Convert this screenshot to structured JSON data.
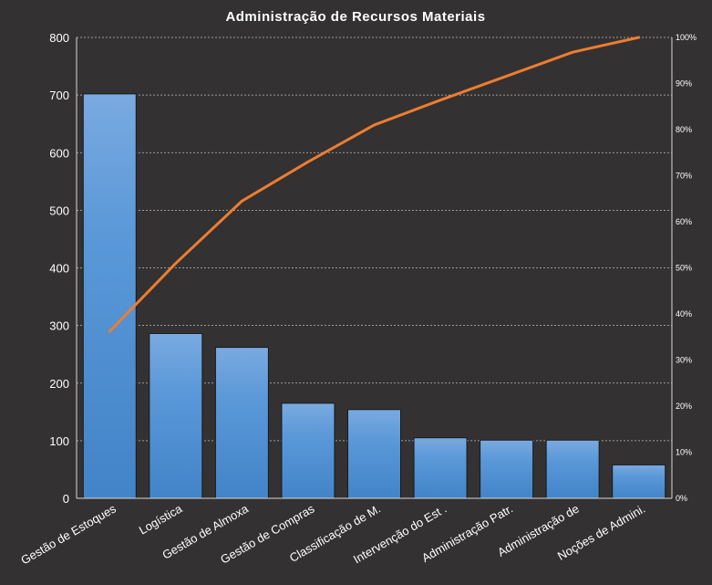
{
  "chart_data": {
    "type": "bar",
    "title": "Administração  de Recursos  Materiais",
    "categories": [
      "Gestão de Estoques",
      "Logística",
      "Gestão de Almoxa",
      "Gestão de Compras",
      "Classificação de M.",
      "Intervenção do Est .",
      "Administração Patr.",
      "Administração de",
      "Noções de Admini."
    ],
    "series": [
      {
        "type": "bar",
        "axis": "left",
        "values": [
          702,
          286,
          262,
          165,
          154,
          105,
          101,
          101,
          58
        ]
      },
      {
        "type": "line",
        "axis": "right",
        "values": [
          36.2,
          51.0,
          64.5,
          73.0,
          81.0,
          86.4,
          91.6,
          96.8,
          100.0
        ]
      }
    ],
    "ylim": [
      0,
      800
    ],
    "yticks": [
      0,
      100,
      200,
      300,
      400,
      500,
      600,
      700,
      800
    ],
    "y2lim": [
      0,
      100
    ],
    "y2ticks": [
      "0%",
      "10%",
      "20%",
      "30%",
      "40%",
      "50%",
      "60%",
      "70%",
      "80%",
      "90%",
      "100%"
    ],
    "grid": true,
    "legend": "none",
    "colors": {
      "background": "#333132",
      "bar_top": "#7aaae0",
      "bar_bottom": "#4284c8",
      "line": "#ed7d31",
      "text": "#ffffff"
    }
  }
}
